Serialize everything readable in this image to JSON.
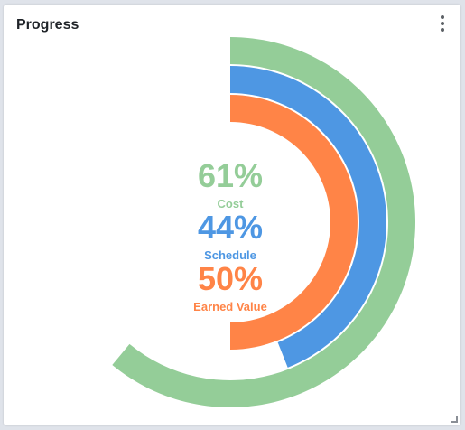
{
  "card": {
    "title": "Progress"
  },
  "icons": {
    "menu": "more-vertical-icon",
    "resize": "resize-handle-icon"
  },
  "chart_data": {
    "type": "radial-bar",
    "series": [
      {
        "name": "Cost",
        "percent": 61,
        "label": "61%",
        "color": "#94cd98"
      },
      {
        "name": "Schedule",
        "percent": 44,
        "label": "44%",
        "color": "#4e97e3"
      },
      {
        "name": "Earned Value",
        "percent": 50,
        "label": "50%",
        "color": "#ff8447"
      }
    ]
  }
}
